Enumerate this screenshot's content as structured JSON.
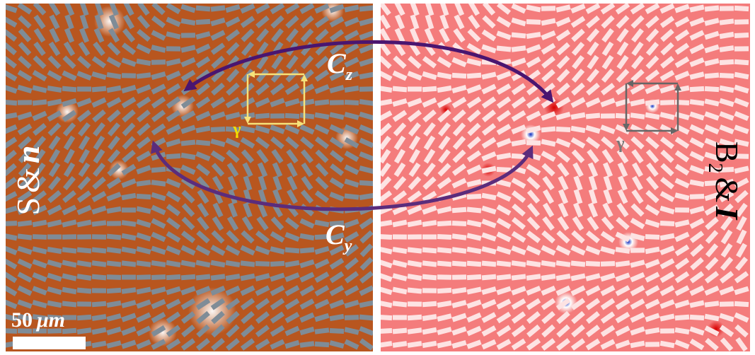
{
  "left_panel": {
    "label": {
      "symbol": "S",
      "join": "&",
      "director": "n"
    },
    "gamma": "γ",
    "scale_bar": {
      "number": "50",
      "unit": "μm"
    }
  },
  "right_panel": {
    "label": {
      "symbol": "B",
      "subscript": "2",
      "join": "&",
      "director": "I"
    },
    "gamma": "γ"
  },
  "arrows": {
    "top": {
      "letter": "C",
      "subscript": "z"
    },
    "bottom": {
      "letter": "C",
      "subscript": "y"
    }
  }
}
